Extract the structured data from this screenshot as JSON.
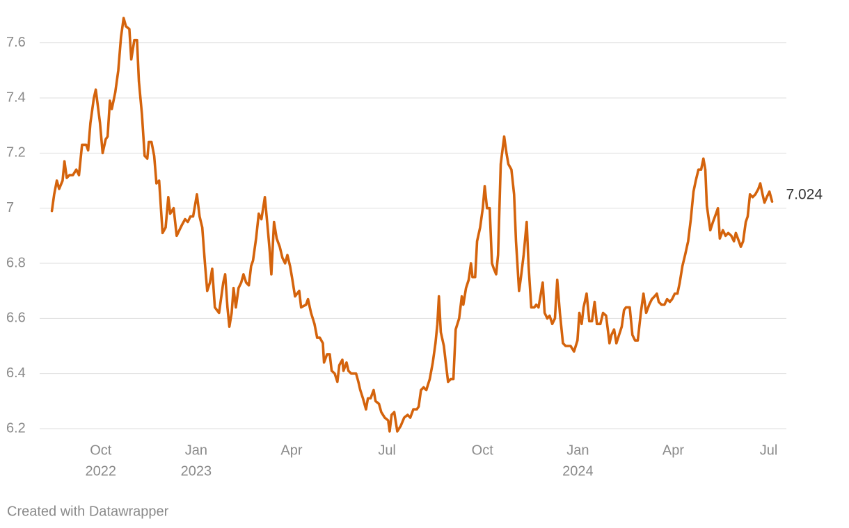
{
  "chart_data": {
    "type": "line",
    "x": [
      2022.622,
      2022.628,
      2022.635,
      2022.641,
      2022.65,
      2022.655,
      2022.661,
      2022.668,
      2022.677,
      2022.686,
      2022.693,
      2022.701,
      2022.712,
      2022.717,
      2022.723,
      2022.732,
      2022.737,
      2022.748,
      2022.755,
      2022.763,
      2022.768,
      2022.774,
      2022.779,
      2022.788,
      2022.796,
      2022.803,
      2022.81,
      2022.816,
      2022.825,
      2022.83,
      2022.838,
      2022.845,
      2022.85,
      2022.858,
      2022.865,
      2022.872,
      2022.876,
      2022.883,
      2022.89,
      2022.896,
      2022.903,
      2022.912,
      2022.92,
      2022.927,
      2022.932,
      2022.941,
      2022.949,
      2022.956,
      2022.963,
      2022.971,
      2022.978,
      2022.985,
      2022.992,
      2023.002,
      2023.009,
      2023.016,
      2023.023,
      2023.029,
      2023.036,
      2023.042,
      2023.049,
      2023.06,
      2023.065,
      2023.071,
      2023.076,
      2023.082,
      2023.087,
      2023.093,
      2023.098,
      2023.104,
      2023.111,
      2023.118,
      2023.124,
      2023.131,
      2023.138,
      2023.144,
      2023.149,
      2023.157,
      2023.164,
      2023.171,
      2023.18,
      2023.188,
      2023.193,
      2023.197,
      2023.204,
      2023.211,
      2023.219,
      2023.226,
      2023.233,
      2023.239,
      2023.246,
      2023.251,
      2023.259,
      2023.27,
      2023.275,
      2023.288,
      2023.293,
      2023.301,
      2023.31,
      2023.317,
      2023.324,
      2023.332,
      2023.335,
      2023.343,
      2023.35,
      2023.355,
      2023.363,
      2023.37,
      2023.375,
      2023.383,
      2023.386,
      2023.394,
      2023.399,
      2023.406,
      2023.419,
      2023.425,
      2023.43,
      2023.437,
      2023.445,
      2023.45,
      2023.457,
      2023.465,
      2023.47,
      2023.479,
      2023.485,
      2023.494,
      2023.503,
      2023.507,
      2023.512,
      2023.519,
      2023.527,
      2023.536,
      2023.545,
      2023.554,
      2023.561,
      2023.569,
      2023.578,
      2023.583,
      2023.589,
      2023.596,
      2023.603,
      2023.612,
      2023.62,
      2023.627,
      2023.632,
      2023.636,
      2023.641,
      2023.649,
      2023.654,
      2023.66,
      2023.667,
      2023.674,
      2023.68,
      2023.689,
      2023.696,
      2023.7,
      2023.707,
      2023.714,
      2023.72,
      2023.724,
      2023.731,
      2023.736,
      2023.744,
      2023.751,
      2023.756,
      2023.762,
      2023.769,
      2023.775,
      2023.78,
      2023.786,
      2023.791,
      2023.798,
      2023.807,
      2023.813,
      2023.818,
      2023.826,
      2023.833,
      2023.838,
      2023.846,
      2023.851,
      2023.858,
      2023.866,
      2023.871,
      2023.878,
      2023.886,
      2023.891,
      2023.897,
      2023.902,
      2023.908,
      2023.913,
      2023.92,
      2023.926,
      2023.933,
      2023.94,
      2023.946,
      2023.953,
      2023.961,
      2023.968,
      2023.981,
      2023.99,
      2023.999,
      2024.004,
      2024.01,
      2024.015,
      2024.023,
      2024.03,
      2024.037,
      2024.044,
      2024.05,
      2024.059,
      2024.066,
      2024.074,
      2024.083,
      2024.088,
      2024.095,
      2024.101,
      2024.108,
      2024.115,
      2024.121,
      2024.126,
      2024.136,
      2024.143,
      2024.15,
      2024.157,
      2024.165,
      2024.172,
      2024.179,
      2024.187,
      2024.194,
      2024.201,
      2024.207,
      2024.212,
      2024.219,
      2024.227,
      2024.234,
      2024.241,
      2024.247,
      2024.254,
      2024.261,
      2024.267,
      2024.274,
      2024.281,
      2024.289,
      2024.296,
      2024.303,
      2024.309,
      2024.316,
      2024.323,
      2024.329,
      2024.334,
      2024.338,
      2024.347,
      2024.354,
      2024.362,
      2024.367,
      2024.372,
      2024.38,
      2024.387,
      2024.394,
      2024.402,
      2024.409,
      2024.414,
      2024.422,
      2024.427,
      2024.433,
      2024.44,
      2024.445,
      2024.451,
      2024.458,
      2024.465,
      2024.473,
      2024.478,
      2024.484,
      2024.489,
      2024.495,
      2024.502,
      2024.509
    ],
    "series": [
      {
        "color": "#d4630c",
        "values": [
          6.99,
          7.05,
          7.1,
          7.07,
          7.1,
          7.17,
          7.11,
          7.12,
          7.12,
          7.14,
          7.12,
          7.23,
          7.23,
          7.21,
          7.31,
          7.4,
          7.43,
          7.31,
          7.2,
          7.25,
          7.26,
          7.39,
          7.36,
          7.42,
          7.5,
          7.62,
          7.69,
          7.66,
          7.65,
          7.54,
          7.61,
          7.61,
          7.46,
          7.34,
          7.19,
          7.18,
          7.24,
          7.24,
          7.19,
          7.09,
          7.1,
          6.91,
          6.93,
          7.04,
          6.98,
          7.0,
          6.9,
          6.92,
          6.94,
          6.96,
          6.95,
          6.97,
          6.97,
          7.05,
          6.97,
          6.93,
          6.8,
          6.7,
          6.73,
          6.78,
          6.64,
          6.62,
          6.67,
          6.73,
          6.76,
          6.64,
          6.57,
          6.62,
          6.71,
          6.64,
          6.71,
          6.73,
          6.76,
          6.73,
          6.72,
          6.79,
          6.81,
          6.89,
          6.98,
          6.96,
          7.04,
          6.92,
          6.84,
          6.76,
          6.95,
          6.89,
          6.86,
          6.82,
          6.8,
          6.83,
          6.79,
          6.75,
          6.68,
          6.7,
          6.64,
          6.65,
          6.67,
          6.62,
          6.58,
          6.53,
          6.53,
          6.51,
          6.44,
          6.47,
          6.47,
          6.41,
          6.4,
          6.37,
          6.43,
          6.45,
          6.41,
          6.44,
          6.41,
          6.4,
          6.4,
          6.37,
          6.34,
          6.31,
          6.27,
          6.31,
          6.31,
          6.34,
          6.3,
          6.29,
          6.26,
          6.24,
          6.23,
          6.19,
          6.25,
          6.26,
          6.19,
          6.21,
          6.24,
          6.25,
          6.24,
          6.27,
          6.27,
          6.28,
          6.34,
          6.35,
          6.34,
          6.38,
          6.44,
          6.51,
          6.58,
          6.68,
          6.55,
          6.5,
          6.44,
          6.37,
          6.38,
          6.38,
          6.56,
          6.6,
          6.68,
          6.65,
          6.71,
          6.74,
          6.8,
          6.75,
          6.75,
          6.88,
          6.93,
          7.0,
          7.08,
          7.0,
          7.0,
          6.8,
          6.78,
          6.76,
          6.83,
          7.16,
          7.26,
          7.2,
          7.16,
          7.14,
          7.05,
          6.88,
          6.7,
          6.75,
          6.83,
          6.95,
          6.79,
          6.64,
          6.64,
          6.65,
          6.64,
          6.68,
          6.73,
          6.62,
          6.6,
          6.61,
          6.58,
          6.6,
          6.74,
          6.62,
          6.51,
          6.5,
          6.5,
          6.48,
          6.52,
          6.62,
          6.58,
          6.64,
          6.69,
          6.59,
          6.59,
          6.66,
          6.58,
          6.58,
          6.62,
          6.61,
          6.51,
          6.54,
          6.56,
          6.51,
          6.54,
          6.57,
          6.63,
          6.64,
          6.64,
          6.54,
          6.52,
          6.52,
          6.62,
          6.69,
          6.62,
          6.65,
          6.67,
          6.68,
          6.69,
          6.66,
          6.65,
          6.65,
          6.67,
          6.66,
          6.67,
          6.69,
          6.69,
          6.73,
          6.79,
          6.83,
          6.88,
          6.96,
          7.06,
          7.1,
          7.14,
          7.14,
          7.18,
          7.14,
          7.01,
          6.92,
          6.95,
          6.98,
          7.0,
          6.89,
          6.92,
          6.9,
          6.91,
          6.9,
          6.88,
          6.91,
          6.88,
          6.86,
          6.88,
          6.95,
          6.97,
          7.05,
          7.04,
          7.05,
          7.07,
          7.09,
          7.05,
          7.02,
          7.04,
          7.06,
          7.024
        ]
      }
    ],
    "xlim": [
      2022.59,
      2024.55
    ],
    "xticks": [
      {
        "value": 2022.75,
        "label": "Oct",
        "year": "2022"
      },
      {
        "value": 2023.0,
        "label": "Jan",
        "year": "2023"
      },
      {
        "value": 2023.25,
        "label": "Apr"
      },
      {
        "value": 2023.5,
        "label": "Jul"
      },
      {
        "value": 2023.75,
        "label": "Oct"
      },
      {
        "value": 2024.0,
        "label": "Jan",
        "year": "2024"
      },
      {
        "value": 2024.25,
        "label": "Apr"
      },
      {
        "value": 2024.5,
        "label": "Jul"
      }
    ],
    "ylim": [
      6.2,
      7.7
    ],
    "yticks": [
      6.2,
      6.4,
      6.6,
      6.8,
      7.0,
      7.2,
      7.4,
      7.6
    ],
    "grid": true,
    "credit": "Created with Datawrapper"
  }
}
